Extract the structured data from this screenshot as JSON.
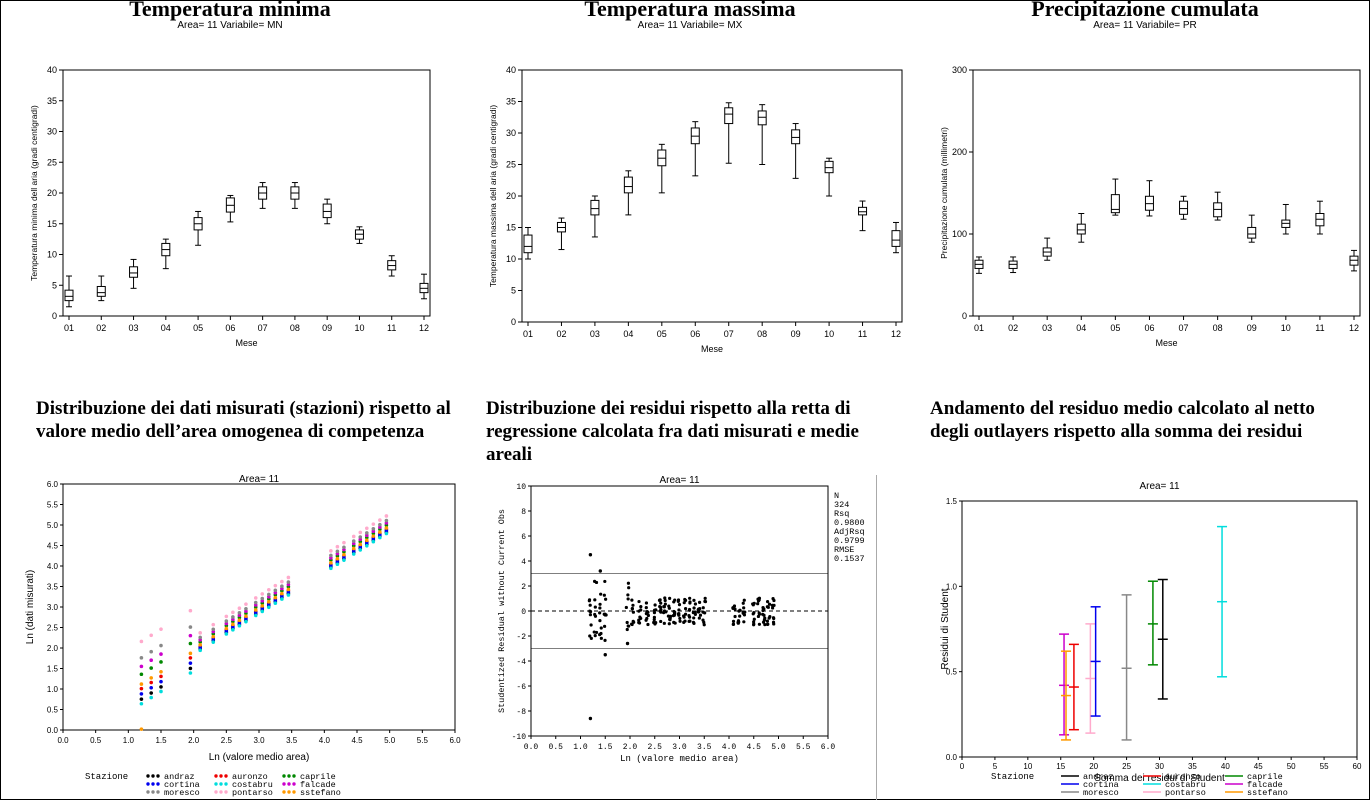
{
  "charts": [
    {
      "id": "tmin",
      "type": "box",
      "title": "Temperatura minima",
      "subtitle": "Area= 11 Variabile= MN",
      "xlabel": "Mese",
      "ylabel": "Temperatura minima dell aria (gradi centigradi)",
      "ylim": [
        0,
        40
      ],
      "yticks": [
        0,
        5,
        10,
        15,
        20,
        25,
        30,
        35,
        40
      ],
      "categories": [
        "01",
        "02",
        "03",
        "04",
        "05",
        "06",
        "07",
        "08",
        "09",
        "10",
        "11",
        "12"
      ],
      "boxes": [
        {
          "min": 1.5,
          "q1": 2.5,
          "med": 3.2,
          "q3": 4.2,
          "max": 6.5
        },
        {
          "min": 2.5,
          "q1": 3.2,
          "med": 3.8,
          "q3": 4.8,
          "max": 6.5
        },
        {
          "min": 4.5,
          "q1": 6.3,
          "med": 7.0,
          "q3": 8.0,
          "max": 9.2
        },
        {
          "min": 7.7,
          "q1": 9.8,
          "med": 10.8,
          "q3": 11.8,
          "max": 12.5
        },
        {
          "min": 11.5,
          "q1": 14.0,
          "med": 15.0,
          "q3": 16.0,
          "max": 17.0
        },
        {
          "min": 15.3,
          "q1": 16.9,
          "med": 18.0,
          "q3": 19.2,
          "max": 19.6
        },
        {
          "min": 17.5,
          "q1": 19.0,
          "med": 20.0,
          "q3": 21.0,
          "max": 21.7
        },
        {
          "min": 17.5,
          "q1": 19.0,
          "med": 20.0,
          "q3": 21.0,
          "max": 21.7
        },
        {
          "min": 15.0,
          "q1": 16.0,
          "med": 17.0,
          "q3": 18.2,
          "max": 19.0
        },
        {
          "min": 11.8,
          "q1": 12.5,
          "med": 13.3,
          "q3": 14.0,
          "max": 14.5
        },
        {
          "min": 6.5,
          "q1": 7.5,
          "med": 8.2,
          "q3": 9.0,
          "max": 9.8
        },
        {
          "min": 2.8,
          "q1": 3.8,
          "med": 4.5,
          "q3": 5.3,
          "max": 6.8
        }
      ]
    },
    {
      "id": "tmax",
      "type": "box",
      "title": "Temperatura massima",
      "subtitle": "Area= 11 Variabile= MX",
      "xlabel": "Mese",
      "ylabel": "Temperatura massima dell aria (gradi centigradi)",
      "ylim": [
        0,
        40
      ],
      "yticks": [
        0,
        5,
        10,
        15,
        20,
        25,
        30,
        35,
        40
      ],
      "categories": [
        "01",
        "02",
        "03",
        "04",
        "05",
        "06",
        "07",
        "08",
        "09",
        "10",
        "11",
        "12"
      ],
      "boxes": [
        {
          "min": 10.0,
          "q1": 11.0,
          "med": 12.0,
          "q3": 13.8,
          "max": 15.0
        },
        {
          "min": 11.5,
          "q1": 14.3,
          "med": 15.0,
          "q3": 15.8,
          "max": 16.5
        },
        {
          "min": 13.5,
          "q1": 17.0,
          "med": 18.0,
          "q3": 19.3,
          "max": 20.0
        },
        {
          "min": 17.0,
          "q1": 20.5,
          "med": 21.5,
          "q3": 23.0,
          "max": 24.0
        },
        {
          "min": 20.5,
          "q1": 24.8,
          "med": 26.0,
          "q3": 27.3,
          "max": 28.2
        },
        {
          "min": 23.2,
          "q1": 28.3,
          "med": 29.5,
          "q3": 30.8,
          "max": 31.8
        },
        {
          "min": 25.2,
          "q1": 31.5,
          "med": 33.0,
          "q3": 34.0,
          "max": 34.8
        },
        {
          "min": 25.0,
          "q1": 31.3,
          "med": 32.5,
          "q3": 33.5,
          "max": 34.5
        },
        {
          "min": 22.8,
          "q1": 28.3,
          "med": 29.3,
          "q3": 30.5,
          "max": 31.5
        },
        {
          "min": 20.0,
          "q1": 23.7,
          "med": 24.5,
          "q3": 25.5,
          "max": 26.0
        },
        {
          "min": 14.5,
          "q1": 17.0,
          "med": 17.5,
          "q3": 18.2,
          "max": 19.2
        },
        {
          "min": 11.0,
          "q1": 12.0,
          "med": 13.0,
          "q3": 14.5,
          "max": 15.8
        }
      ]
    },
    {
      "id": "prec",
      "type": "box",
      "title": "Precipitazione cumulata",
      "subtitle": "Area= 11 Variabile= PR",
      "xlabel": "Mese",
      "ylabel": "Precipitazione cumulata (millimetri)",
      "ylim": [
        0,
        300
      ],
      "yticks": [
        0,
        100,
        200,
        300
      ],
      "categories": [
        "01",
        "02",
        "03",
        "04",
        "05",
        "06",
        "07",
        "08",
        "09",
        "10",
        "11",
        "12"
      ],
      "boxes": [
        {
          "min": 52,
          "q1": 58,
          "med": 63,
          "q3": 68,
          "max": 72
        },
        {
          "min": 53,
          "q1": 58,
          "med": 63,
          "q3": 67,
          "max": 72
        },
        {
          "min": 68,
          "q1": 73,
          "med": 78,
          "q3": 83,
          "max": 95
        },
        {
          "min": 90,
          "q1": 100,
          "med": 105,
          "q3": 112,
          "max": 125
        },
        {
          "min": 123,
          "q1": 126,
          "med": 130,
          "q3": 148,
          "max": 167
        },
        {
          "min": 122,
          "q1": 129,
          "med": 137,
          "q3": 146,
          "max": 165
        },
        {
          "min": 118,
          "q1": 124,
          "med": 131,
          "q3": 140,
          "max": 146
        },
        {
          "min": 117,
          "q1": 121,
          "med": 130,
          "q3": 138,
          "max": 151
        },
        {
          "min": 90,
          "q1": 95,
          "med": 100,
          "q3": 108,
          "max": 123
        },
        {
          "min": 100,
          "q1": 108,
          "med": 113,
          "q3": 117,
          "max": 136
        },
        {
          "min": 100,
          "q1": 110,
          "med": 118,
          "q3": 125,
          "max": 140
        },
        {
          "min": 55,
          "q1": 62,
          "med": 68,
          "q3": 73,
          "max": 80
        }
      ]
    },
    {
      "id": "scatter",
      "type": "scatter",
      "heading": "Distribuzione dei dati misurati (stazioni) rispetto al valore medio dell’area omogenea di competenza",
      "subtitle": "Area= 11",
      "xlabel": "Ln (valore medio area)",
      "ylabel": "Ln (dati misurati)",
      "xlim": [
        0,
        6
      ],
      "ylim": [
        0,
        6
      ],
      "xticks": [
        "0.0",
        "0.5",
        "1.0",
        "1.5",
        "2.0",
        "2.5",
        "3.0",
        "3.5",
        "4.0",
        "4.5",
        "5.0",
        "5.5",
        "6.0"
      ],
      "yticks": [
        "0.0",
        "0.5",
        "1.0",
        "1.5",
        "2.0",
        "2.5",
        "3.0",
        "3.5",
        "4.0",
        "4.5",
        "5.0",
        "5.5",
        "6.0"
      ],
      "x": [
        1.2,
        1.35,
        1.5,
        1.95,
        2.1,
        2.3,
        2.5,
        2.6,
        2.7,
        2.8,
        2.95,
        3.05,
        3.15,
        3.25,
        3.35,
        3.45,
        4.1,
        4.2,
        4.3,
        4.45,
        4.55,
        4.65,
        4.75,
        4.85,
        4.95
      ],
      "series": [
        {
          "name": "andraz",
          "color": "#000000",
          "offset": -0.28
        },
        {
          "name": "auronzo",
          "color": "#ee0000",
          "offset": -0.12
        },
        {
          "name": "caprile",
          "color": "#008800",
          "offset": 0.1
        },
        {
          "name": "cortina",
          "color": "#0000ee",
          "offset": -0.2
        },
        {
          "name": "costabru",
          "color": "#00dddd",
          "offset": -0.35
        },
        {
          "name": "falcade",
          "color": "#cc00cc",
          "offset": 0.22
        },
        {
          "name": "moresco",
          "color": "#888888",
          "offset": 0.35
        },
        {
          "name": "pontarso",
          "color": "#ffaacc",
          "offset": 0.6
        },
        {
          "name": "sstefano",
          "color": "#ff9900",
          "offset": -0.05
        }
      ],
      "legend_title": "Stazione"
    },
    {
      "id": "resid",
      "type": "scatter",
      "heading": "Distribuzione dei residui rispetto alla retta di regressione calcolata fra dati misurati e medie areali",
      "subtitle": "Area= 11",
      "xlabel": "Ln (valore medio area)",
      "ylabel": "Studentized Residual without Current Obs",
      "xlim": [
        0,
        6
      ],
      "ylim": [
        -10,
        10
      ],
      "xticks": [
        "0.0",
        "0.5",
        "1.0",
        "1.5",
        "2.0",
        "2.5",
        "3.0",
        "3.5",
        "4.0",
        "4.5",
        "5.0",
        "5.5",
        "6.0"
      ],
      "yticks": [
        "-10",
        "-8",
        "-6",
        "-4",
        "-2",
        "0",
        "2",
        "4",
        "6",
        "8",
        "10"
      ],
      "stats": [
        "N",
        "324",
        "Rsq",
        "0.9800",
        "AdjRsq",
        "0.9799",
        "RMSE",
        "0.1537"
      ],
      "refline": 3,
      "outliers": [
        [
          1.2,
          4.5
        ],
        [
          1.2,
          -8.6
        ],
        [
          1.5,
          -3.5
        ],
        [
          1.4,
          3.2
        ],
        [
          1.95,
          -2.6
        ]
      ]
    },
    {
      "id": "means",
      "type": "errorbar",
      "heading": "Andamento del residuo medio calcolato al netto degli outlayers rispetto alla somma dei residui",
      "subtitle": "Area= 11",
      "xlabel": "Somma dei residui di Student",
      "ylabel": "Residui di Student",
      "xlim": [
        0,
        60
      ],
      "ylim": [
        0,
        1.5
      ],
      "xticks": [
        "0",
        "5",
        "10",
        "15",
        "20",
        "25",
        "30",
        "35",
        "40",
        "45",
        "50",
        "55",
        "60"
      ],
      "yticks": [
        "0.0",
        "0.5",
        "1.0",
        "1.5"
      ],
      "points": [
        {
          "name": "falcade",
          "color": "#cc00cc",
          "x": 15.5,
          "lo": 0.13,
          "mean": 0.42,
          "hi": 0.72
        },
        {
          "name": "sstefano",
          "color": "#ff9900",
          "x": 15.8,
          "lo": 0.1,
          "mean": 0.36,
          "hi": 0.62
        },
        {
          "name": "auronzo",
          "color": "#ee0000",
          "x": 17.0,
          "lo": 0.16,
          "mean": 0.41,
          "hi": 0.66
        },
        {
          "name": "pontarso",
          "color": "#ffaacc",
          "x": 19.5,
          "lo": 0.14,
          "mean": 0.46,
          "hi": 0.78
        },
        {
          "name": "cortina",
          "color": "#0000ee",
          "x": 20.3,
          "lo": 0.24,
          "mean": 0.56,
          "hi": 0.88
        },
        {
          "name": "moresco",
          "color": "#888888",
          "x": 25.0,
          "lo": 0.1,
          "mean": 0.52,
          "hi": 0.95
        },
        {
          "name": "caprile",
          "color": "#008800",
          "x": 29.0,
          "lo": 0.54,
          "mean": 0.78,
          "hi": 1.03
        },
        {
          "name": "andraz",
          "color": "#000000",
          "x": 30.5,
          "lo": 0.34,
          "mean": 0.69,
          "hi": 1.04
        },
        {
          "name": "costabru",
          "color": "#00dddd",
          "x": 39.5,
          "lo": 0.47,
          "mean": 0.91,
          "hi": 1.35
        }
      ],
      "legend_title": "Stazione"
    }
  ]
}
